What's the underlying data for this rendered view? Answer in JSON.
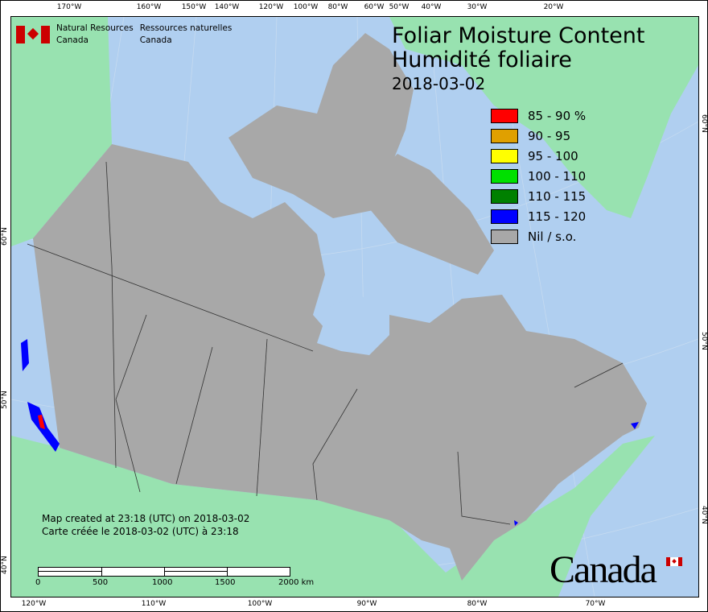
{
  "agency": {
    "en_line1": "Natural Resources",
    "en_line2": "Canada",
    "fr_line1": "Ressources naturelles",
    "fr_line2": "Canada"
  },
  "title": {
    "en": "Foliar Moisture Content",
    "fr": "Humidité foliaire",
    "date": "2018-03-02"
  },
  "legend": [
    {
      "label": "85 - 90 %",
      "color": "#ff0000"
    },
    {
      "label": "90 - 95",
      "color": "#e0a000"
    },
    {
      "label": "95 - 100",
      "color": "#ffff00"
    },
    {
      "label": "100 - 110",
      "color": "#00e000"
    },
    {
      "label": "110 - 115",
      "color": "#008000"
    },
    {
      "label": "115 - 120",
      "color": "#0000ff"
    },
    {
      "label": "Nil / s.o.",
      "color": "#a8a8a8"
    }
  ],
  "created": {
    "en": "Map created at 23:18 (UTC) on 2018-03-02",
    "fr": "Carte créée le 2018-03-02 (UTC) à 23:18"
  },
  "scale_bar": {
    "labels": [
      "0",
      "500",
      "1000",
      "1500",
      "2000  km"
    ]
  },
  "wordmark": "Canada",
  "ticks": {
    "top": [
      "170°W",
      "160°W",
      "150°W",
      "140°W",
      "120°W",
      "100°W",
      "80°W",
      "60°W",
      "50°W",
      "40°W",
      "30°W",
      "20°W"
    ],
    "bottom": [
      "120°W",
      "110°W",
      "100°W",
      "90°W",
      "80°W",
      "70°W"
    ],
    "left": [
      "60°N",
      "50°N",
      "40°N"
    ],
    "right": [
      "60°N",
      "50°N",
      "40°N"
    ]
  },
  "colors": {
    "water": "#b0cff0",
    "foreign_land": "#98e2b0",
    "canada_land": "#a8a8a8"
  }
}
